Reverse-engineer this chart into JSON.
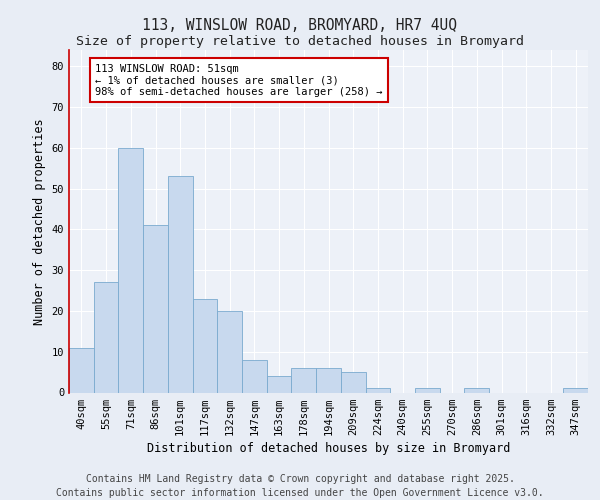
{
  "title1": "113, WINSLOW ROAD, BROMYARD, HR7 4UQ",
  "title2": "Size of property relative to detached houses in Bromyard",
  "xlabel": "Distribution of detached houses by size in Bromyard",
  "ylabel": "Number of detached properties",
  "categories": [
    "40sqm",
    "55sqm",
    "71sqm",
    "86sqm",
    "101sqm",
    "117sqm",
    "132sqm",
    "147sqm",
    "163sqm",
    "178sqm",
    "194sqm",
    "209sqm",
    "224sqm",
    "240sqm",
    "255sqm",
    "270sqm",
    "286sqm",
    "301sqm",
    "316sqm",
    "332sqm",
    "347sqm"
  ],
  "values": [
    11,
    27,
    60,
    41,
    53,
    23,
    20,
    8,
    4,
    6,
    6,
    5,
    1,
    0,
    1,
    0,
    1,
    0,
    0,
    0,
    1
  ],
  "bar_color": "#c8d9ee",
  "bar_edge_color": "#7aaacf",
  "annotation_box_text": "113 WINSLOW ROAD: 51sqm\n← 1% of detached houses are smaller (3)\n98% of semi-detached houses are larger (258) →",
  "footer1": "Contains HM Land Registry data © Crown copyright and database right 2025.",
  "footer2": "Contains public sector information licensed under the Open Government Licence v3.0.",
  "ylim": [
    0,
    84
  ],
  "yticks": [
    0,
    10,
    20,
    30,
    40,
    50,
    60,
    70,
    80
  ],
  "background_color": "#e8edf5",
  "plot_bg_color": "#edf1f8",
  "grid_color": "#ffffff",
  "title_fontsize": 10.5,
  "subtitle_fontsize": 9.5,
  "axis_label_fontsize": 8.5,
  "tick_fontsize": 7.5,
  "footer_fontsize": 7.0,
  "annot_fontsize": 7.5
}
